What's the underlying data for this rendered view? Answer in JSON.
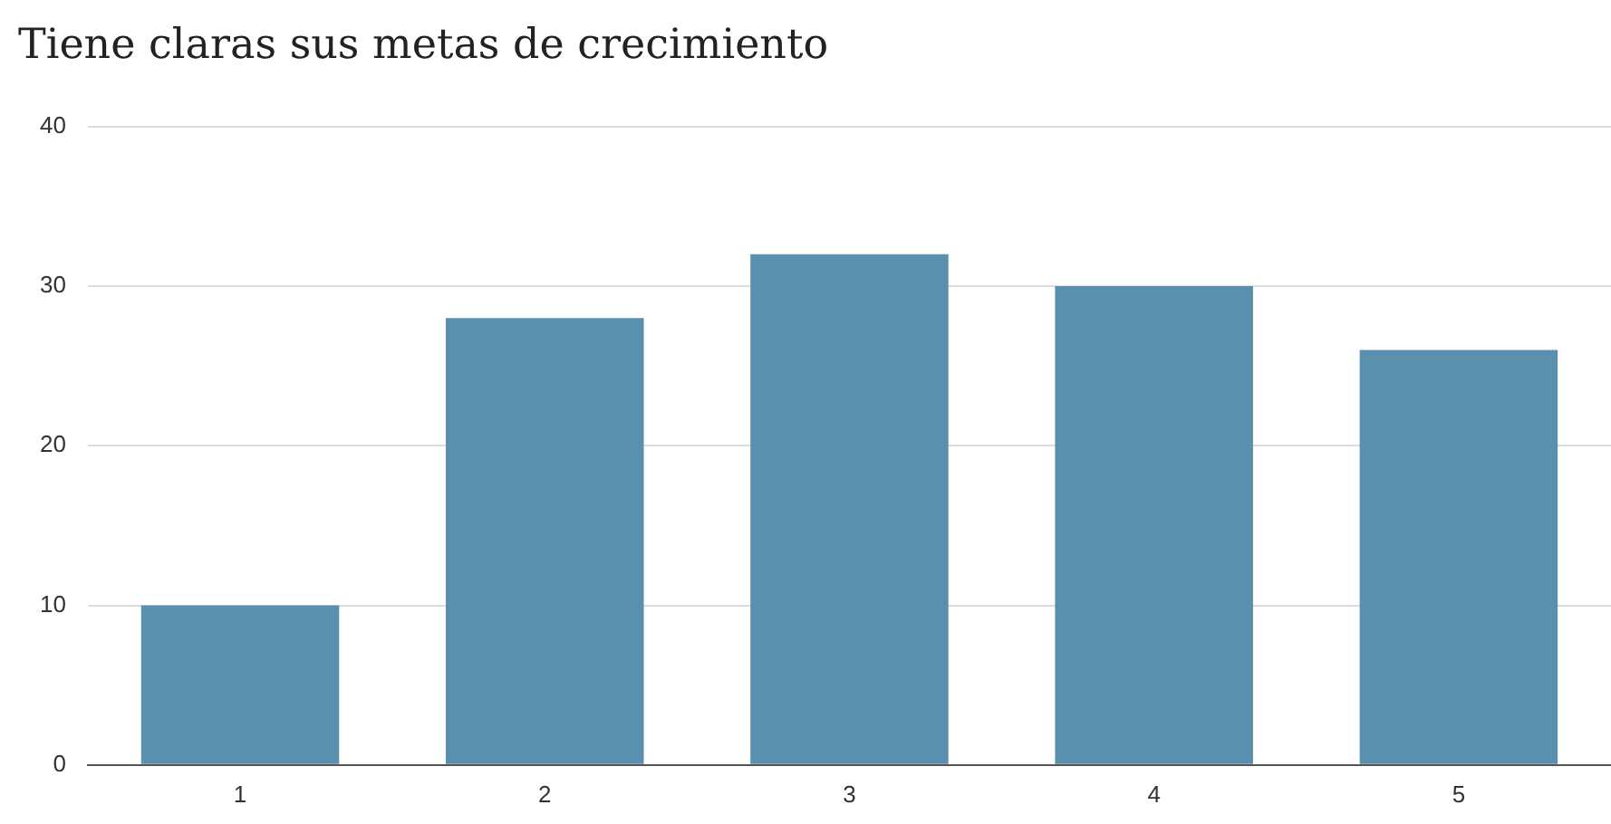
{
  "chart_data": {
    "type": "bar",
    "title": "Tiene claras sus metas de crecimiento",
    "categories": [
      "1",
      "2",
      "3",
      "4",
      "5"
    ],
    "values": [
      10,
      28,
      32,
      30,
      26
    ],
    "color": "#5a90ae",
    "ylim": [
      0,
      40
    ],
    "yticks": [
      0,
      10,
      20,
      30,
      40
    ],
    "grid": "y"
  }
}
